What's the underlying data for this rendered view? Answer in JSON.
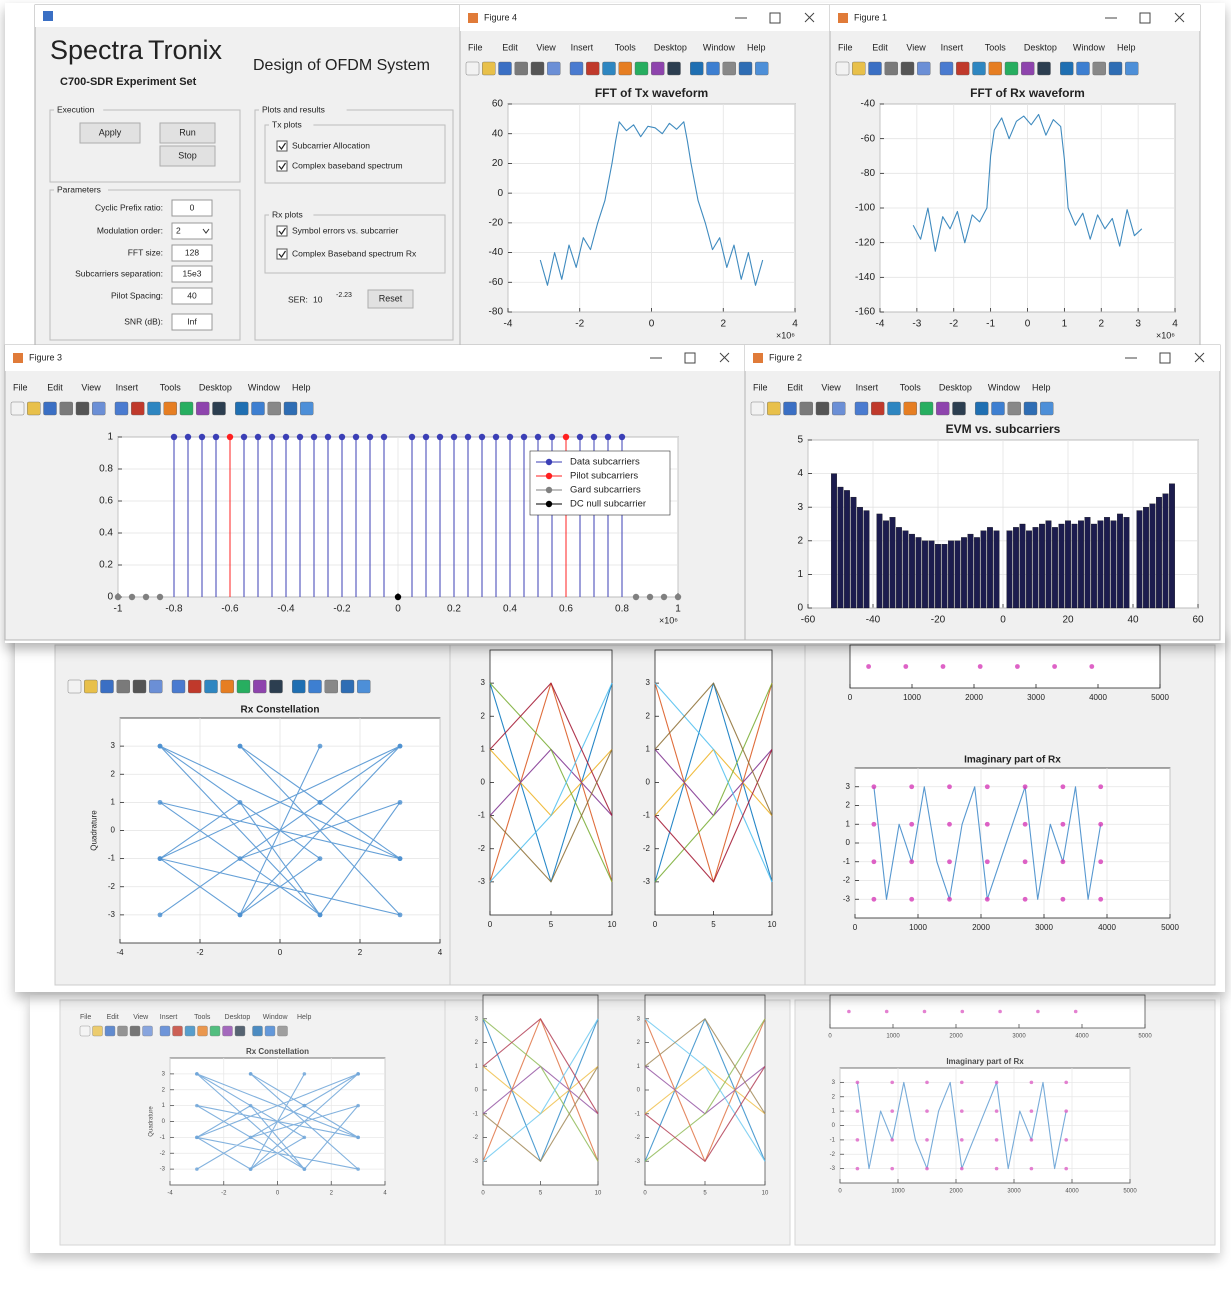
{
  "gui": {
    "logo": [
      "Spectra",
      "Tronix"
    ],
    "subtitle": "C700-SDR Experiment Set",
    "heading": "Design of OFDM System",
    "execution": {
      "title": "Execution",
      "buttons": [
        "Apply",
        "Run",
        "Stop"
      ]
    },
    "parameters": {
      "title": "Parameters",
      "fields": [
        {
          "label": "Cyclic Prefix ratio:",
          "value": "0"
        },
        {
          "label": "Modulation order:",
          "value": "2",
          "dropdown": true
        },
        {
          "label": "FFT size:",
          "value": "128"
        },
        {
          "label": "Subcarriers separation:",
          "value": "15e3"
        },
        {
          "label": "Pilot Spacing:",
          "value": "40"
        },
        {
          "label": "SNR (dB):",
          "value": "Inf"
        }
      ]
    },
    "plots": {
      "title": "Plots and results",
      "tx": {
        "title": "Tx plots",
        "options": [
          "Subcarrier Allocation",
          "Complex baseband spectrum"
        ]
      },
      "rx": {
        "title": "Rx plots",
        "options": [
          "Symbol errors vs. subcarrier",
          "Complex Baseband spectrum Rx"
        ]
      },
      "ser_label": "SER:",
      "ser_base": "10",
      "ser_exponent": "-2.23",
      "reset": "Reset"
    }
  },
  "windows": [
    "Figure 4",
    "Figure 1",
    "Figure 3",
    "Figure 2"
  ],
  "menu": [
    "File",
    "Edit",
    "View",
    "Insert",
    "Tools",
    "Desktop",
    "Window",
    "Help"
  ],
  "chart_data": [
    {
      "type": "line",
      "title": "FFT of Tx waveform",
      "x_multiplier": "×10⁶",
      "xlim": [
        -4,
        4
      ],
      "xticks": [
        -4,
        -2,
        0,
        2,
        4
      ],
      "ylim": [
        -80,
        60
      ],
      "yticks": [
        -80,
        -60,
        -40,
        -20,
        0,
        20,
        40,
        60
      ],
      "grid": true,
      "series": [
        {
          "color": "#1f77b4",
          "x": [
            -3.1,
            -2.9,
            -2.7,
            -2.5,
            -2.3,
            -2.1,
            -1.9,
            -1.7,
            -1.5,
            -1.3,
            -1.1,
            -1.0,
            -0.9,
            -0.7,
            -0.5,
            -0.3,
            -0.1,
            0.1,
            0.3,
            0.5,
            0.7,
            0.9,
            1.0,
            1.1,
            1.3,
            1.5,
            1.7,
            1.9,
            2.1,
            2.3,
            2.5,
            2.7,
            2.9,
            3.1
          ],
          "values": [
            -45,
            -62,
            -40,
            -58,
            -35,
            -50,
            -30,
            -38,
            -20,
            -5,
            20,
            35,
            48,
            42,
            46,
            38,
            45,
            44,
            40,
            47,
            43,
            48,
            35,
            20,
            -5,
            -20,
            -38,
            -30,
            -50,
            -35,
            -58,
            -40,
            -62,
            -45
          ]
        }
      ]
    },
    {
      "type": "line",
      "title": "FFT of Rx waveform",
      "x_multiplier": "×10⁶",
      "xlim": [
        -4,
        4
      ],
      "xticks": [
        -4,
        -3,
        -2,
        -1,
        0,
        1,
        2,
        3,
        4
      ],
      "ylim": [
        -160,
        -40
      ],
      "yticks": [
        -160,
        -140,
        -120,
        -100,
        -80,
        -60,
        -40
      ],
      "grid": true,
      "series": [
        {
          "color": "#1f77b4",
          "x": [
            -3.1,
            -2.9,
            -2.7,
            -2.5,
            -2.3,
            -2.1,
            -1.9,
            -1.7,
            -1.5,
            -1.3,
            -1.1,
            -1.0,
            -0.9,
            -0.7,
            -0.5,
            -0.3,
            -0.1,
            0.1,
            0.3,
            0.5,
            0.7,
            0.9,
            1.0,
            1.1,
            1.3,
            1.5,
            1.7,
            1.9,
            2.1,
            2.3,
            2.5,
            2.7,
            2.9,
            3.1
          ],
          "values": [
            -110,
            -118,
            -100,
            -125,
            -105,
            -112,
            -102,
            -120,
            -104,
            -108,
            -100,
            -70,
            -55,
            -48,
            -60,
            -50,
            -47,
            -52,
            -46,
            -58,
            -49,
            -53,
            -72,
            -100,
            -110,
            -103,
            -118,
            -104,
            -112,
            -106,
            -122,
            -101,
            -116,
            -112
          ]
        }
      ]
    },
    {
      "type": "stem",
      "x_multiplier": "×10⁶",
      "legend": "upper right",
      "xlim": [
        -1,
        1
      ],
      "xticks": [
        -1,
        -0.8,
        -0.6,
        -0.4,
        -0.2,
        0,
        0.2,
        0.4,
        0.6,
        0.8,
        1
      ],
      "ylim": [
        0,
        1
      ],
      "yticks": [
        0,
        0.2,
        0.4,
        0.6,
        0.8,
        1
      ],
      "grid": true,
      "series": [
        {
          "name": "Data subcarriers",
          "color": "#3b3fb6",
          "x": [
            -0.8,
            -0.75,
            -0.7,
            -0.65,
            -0.55,
            -0.5,
            -0.45,
            -0.4,
            -0.35,
            -0.3,
            -0.25,
            -0.2,
            -0.15,
            -0.1,
            -0.05,
            0.05,
            0.1,
            0.15,
            0.2,
            0.25,
            0.3,
            0.35,
            0.4,
            0.45,
            0.5,
            0.55,
            0.65,
            0.7,
            0.75,
            0.8
          ],
          "values": [
            1,
            1,
            1,
            1,
            1,
            1,
            1,
            1,
            1,
            1,
            1,
            1,
            1,
            1,
            1,
            1,
            1,
            1,
            1,
            1,
            1,
            1,
            1,
            1,
            1,
            1,
            1,
            1,
            1,
            1
          ]
        },
        {
          "name": "Pilot subcarriers",
          "color": "#ff2020",
          "x": [
            -0.6,
            0.6
          ],
          "values": [
            1,
            1
          ]
        },
        {
          "name": "Gard subcarriers",
          "color": "#808080",
          "x": [
            -1,
            -0.95,
            -0.9,
            -0.85,
            0.85,
            0.9,
            0.95,
            1
          ],
          "values": [
            0,
            0,
            0,
            0,
            0,
            0,
            0,
            0
          ]
        },
        {
          "name": "DC null subcarrier",
          "color": "#000000",
          "x": [
            0
          ],
          "values": [
            0
          ]
        }
      ]
    },
    {
      "type": "bar",
      "title": "EVM vs. subcarriers",
      "color": "#1c1c4e",
      "xlim": [
        -60,
        60
      ],
      "xticks": [
        -60,
        -40,
        -20,
        0,
        20,
        40,
        60
      ],
      "ylim": [
        0,
        5
      ],
      "yticks": [
        0,
        1,
        2,
        3,
        4,
        5
      ],
      "grid": true,
      "x": [
        -52,
        -50,
        -48,
        -46,
        -44,
        -42,
        -38,
        -36,
        -34,
        -32,
        -30,
        -28,
        -26,
        -24,
        -22,
        -20,
        -18,
        -16,
        -14,
        -12,
        -10,
        -8,
        -6,
        -4,
        -2,
        2,
        4,
        6,
        8,
        10,
        12,
        14,
        16,
        18,
        20,
        22,
        24,
        26,
        28,
        30,
        32,
        34,
        36,
        38,
        42,
        44,
        46,
        48,
        50,
        52
      ],
      "values": [
        4.0,
        3.6,
        3.5,
        3.3,
        3.0,
        2.9,
        2.8,
        2.6,
        2.7,
        2.4,
        2.3,
        2.2,
        2.1,
        2.0,
        2.0,
        1.9,
        1.9,
        2.0,
        2.0,
        2.1,
        2.2,
        2.1,
        2.3,
        2.4,
        2.3,
        2.3,
        2.4,
        2.5,
        2.3,
        2.4,
        2.5,
        2.6,
        2.4,
        2.5,
        2.6,
        2.5,
        2.6,
        2.7,
        2.5,
        2.6,
        2.7,
        2.6,
        2.8,
        2.7,
        2.9,
        3.0,
        3.1,
        3.3,
        3.4,
        3.7
      ]
    },
    {
      "type": "line",
      "title": "Rx Constellation",
      "ylabel": "Quadrature",
      "xlim": [
        -4,
        4
      ],
      "xticks": [
        -4,
        -2,
        0,
        2,
        4
      ],
      "ylim": [
        -4,
        4
      ],
      "yticks": [
        -3,
        -2,
        -1,
        0,
        1,
        2,
        3
      ],
      "grid": true,
      "series": [
        {
          "color": "#4a8fd0",
          "marker": "o",
          "x": [
            -3,
            1,
            3,
            -1,
            -3,
            3,
            1,
            -1,
            3,
            -3,
            -1,
            1,
            -3,
            3,
            -1,
            1,
            3,
            -3,
            1,
            -1,
            -3,
            3,
            -1,
            1
          ],
          "values": [
            3,
            -3,
            1,
            -1,
            -3,
            3,
            1,
            3,
            -3,
            -1,
            1,
            -3,
            1,
            -1,
            3,
            1,
            -1,
            3,
            -1,
            -3,
            -1,
            3,
            -3,
            3
          ]
        }
      ]
    },
    {
      "type": "line",
      "xlim": [
        0,
        10
      ],
      "xticks": [
        0,
        5,
        10
      ],
      "ylim": [
        -4,
        4
      ],
      "yticks": [
        -3,
        -2,
        -1,
        0,
        1,
        2,
        3
      ],
      "series": [
        {
          "color": "#0072bd",
          "x": [
            0,
            2.5,
            5,
            7.5,
            10
          ],
          "values": [
            3,
            0,
            -3,
            0,
            3
          ]
        },
        {
          "color": "#d95319",
          "x": [
            0,
            2.5,
            5,
            7.5,
            10
          ],
          "values": [
            -3,
            0,
            3,
            0,
            -3
          ]
        },
        {
          "color": "#edb120",
          "x": [
            0,
            2.5,
            5,
            7.5,
            10
          ],
          "values": [
            1,
            0,
            -1,
            0,
            1
          ]
        },
        {
          "color": "#7e2f8e",
          "x": [
            0,
            2.5,
            5,
            7.5,
            10
          ],
          "values": [
            -1,
            0,
            1,
            0,
            -1
          ]
        },
        {
          "color": "#77ac30",
          "x": [
            0,
            2.5,
            5,
            7.5,
            10
          ],
          "values": [
            3,
            2,
            1,
            -1,
            -3
          ]
        },
        {
          "color": "#4dbeee",
          "x": [
            0,
            2.5,
            5,
            7.5,
            10
          ],
          "values": [
            -3,
            -2,
            -1,
            1,
            3
          ]
        },
        {
          "color": "#a2142f",
          "x": [
            0,
            2.5,
            5,
            7.5,
            10
          ],
          "values": [
            1,
            2,
            3,
            1,
            -1
          ]
        },
        {
          "color": "#8c6d31",
          "x": [
            0,
            2.5,
            5,
            7.5,
            10
          ],
          "values": [
            -1,
            -2,
            -3,
            -1,
            1
          ]
        }
      ]
    },
    {
      "type": "line",
      "xlim": [
        0,
        10
      ],
      "xticks": [
        0,
        5,
        10
      ],
      "ylim": [
        -4,
        4
      ],
      "yticks": [
        -3,
        -2,
        -1,
        0,
        1,
        2,
        3
      ],
      "series": [
        {
          "color": "#0072bd",
          "x": [
            0,
            2.5,
            5,
            7.5,
            10
          ],
          "values": [
            -3,
            0,
            3,
            0,
            -3
          ]
        },
        {
          "color": "#d95319",
          "x": [
            0,
            2.5,
            5,
            7.5,
            10
          ],
          "values": [
            3,
            0,
            -3,
            0,
            3
          ]
        },
        {
          "color": "#edb120",
          "x": [
            0,
            2.5,
            5,
            7.5,
            10
          ],
          "values": [
            -1,
            0,
            1,
            0,
            -1
          ]
        },
        {
          "color": "#7e2f8e",
          "x": [
            0,
            2.5,
            5,
            7.5,
            10
          ],
          "values": [
            1,
            0,
            -1,
            0,
            1
          ]
        },
        {
          "color": "#77ac30",
          "x": [
            0,
            2.5,
            5,
            7.5,
            10
          ],
          "values": [
            -3,
            -2,
            -1,
            1,
            3
          ]
        },
        {
          "color": "#4dbeee",
          "x": [
            0,
            2.5,
            5,
            7.5,
            10
          ],
          "values": [
            3,
            2,
            1,
            -1,
            -3
          ]
        },
        {
          "color": "#a2142f",
          "x": [
            0,
            2.5,
            5,
            7.5,
            10
          ],
          "values": [
            -1,
            -2,
            -3,
            -1,
            1
          ]
        },
        {
          "color": "#8c6d31",
          "x": [
            0,
            2.5,
            5,
            7.5,
            10
          ],
          "values": [
            1,
            2,
            3,
            1,
            -1
          ]
        }
      ]
    },
    {
      "type": "line",
      "title": "Imaginary part of Rx",
      "xlim": [
        0,
        5000
      ],
      "xticks": [
        0,
        1000,
        2000,
        3000,
        4000,
        5000
      ],
      "ylim": [
        -4,
        4
      ],
      "yticks": [
        -3,
        -2,
        -1,
        0,
        1,
        2,
        3
      ],
      "grid": true,
      "series": [
        {
          "color": "#3a86c8",
          "x": [
            300,
            500,
            700,
            900,
            1100,
            1300,
            1500,
            1700,
            1900,
            2100,
            2300,
            2500,
            2700,
            2900,
            3100,
            3300,
            3500,
            3700,
            3900
          ],
          "values": [
            3,
            -3,
            1,
            -1,
            3,
            -1,
            -3,
            1,
            3,
            -3,
            -1,
            1,
            3,
            -3,
            1,
            -1,
            3,
            -3,
            1
          ]
        },
        {
          "color": "#d63bb8",
          "marker": "o",
          "linestyle": "none",
          "x": [
            300,
            900,
            1500,
            2100,
            2700,
            3300,
            3900,
            300,
            900,
            1500,
            2100,
            2700,
            3300,
            3900,
            300,
            900,
            1500,
            2100,
            2700,
            3300,
            3900,
            300,
            900,
            1500,
            2100,
            2700,
            3300,
            3900
          ],
          "values": [
            3,
            3,
            3,
            3,
            3,
            3,
            3,
            1,
            1,
            1,
            1,
            1,
            1,
            1,
            -1,
            -1,
            -1,
            -1,
            -1,
            -1,
            -1,
            -3,
            -3,
            -3,
            -3,
            -3,
            -3,
            -3
          ]
        }
      ]
    },
    {
      "type": "line",
      "xlim": [
        0,
        5000
      ],
      "xticks": [
        0,
        1000,
        2000,
        3000,
        4000,
        5000
      ],
      "ylim": [
        -4,
        -2
      ],
      "series": [
        {
          "color": "#d63bb8",
          "marker": "o",
          "linestyle": "none",
          "x": [
            300,
            900,
            1500,
            2100,
            2700,
            3300,
            3900
          ],
          "values": [
            -3,
            -3,
            -3,
            -3,
            -3,
            -3,
            -3
          ]
        }
      ]
    }
  ]
}
